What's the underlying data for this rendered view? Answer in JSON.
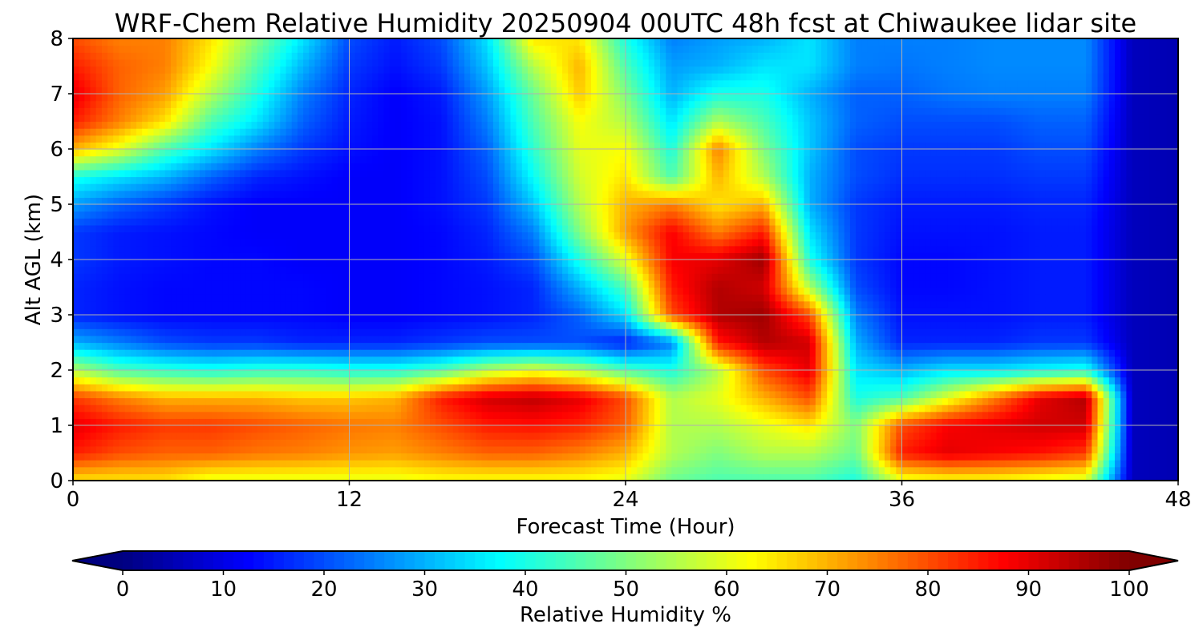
{
  "chart_data": {
    "type": "heatmap",
    "title": "WRF-Chem Relative Humidity 20250904 00UTC 48h fcst at Chiwaukee lidar site",
    "xlabel": "Forecast Time (Hour)",
    "ylabel": "Alt AGL (km)",
    "xlim": [
      0,
      48
    ],
    "ylim": [
      0,
      8
    ],
    "x_ticks": [
      0,
      12,
      24,
      36,
      48
    ],
    "x_tick_labels": [
      "0",
      "12",
      "24",
      "36",
      "48"
    ],
    "y_ticks": [
      0,
      1,
      2,
      3,
      4,
      5,
      6,
      7,
      8
    ],
    "y_tick_labels": [
      "0",
      "1",
      "2",
      "3",
      "4",
      "5",
      "6",
      "7",
      "8"
    ],
    "grid": true,
    "colormap": "jet",
    "colorbar": {
      "label": "Relative Humidity %",
      "min": 0,
      "max": 100,
      "ticks": [
        0,
        10,
        20,
        30,
        40,
        50,
        60,
        70,
        80,
        90,
        100
      ],
      "tick_labels": [
        "0",
        "10",
        "20",
        "30",
        "40",
        "50",
        "60",
        "70",
        "80",
        "90",
        "100"
      ],
      "extend": "both",
      "orientation": "horizontal"
    },
    "x": [
      0,
      2,
      4,
      6,
      8,
      10,
      12,
      14,
      16,
      18,
      20,
      22,
      24,
      26,
      28,
      30,
      32,
      34,
      36,
      38,
      40,
      42,
      44,
      46,
      48
    ],
    "y": [
      0,
      0.5,
      1,
      1.5,
      2,
      2.5,
      3,
      3.5,
      4,
      4.5,
      5,
      5.5,
      6,
      6.5,
      7,
      7.5,
      8
    ],
    "values": [
      [
        65,
        65,
        65,
        60,
        60,
        60,
        60,
        60,
        62,
        62,
        62,
        62,
        60,
        48,
        45,
        45,
        45,
        40,
        60,
        62,
        62,
        60,
        58,
        6,
        5
      ],
      [
        85,
        80,
        78,
        78,
        76,
        75,
        73,
        72,
        75,
        78,
        78,
        75,
        70,
        55,
        50,
        55,
        55,
        48,
        85,
        90,
        88,
        86,
        82,
        6,
        5
      ],
      [
        90,
        85,
        82,
        82,
        80,
        78,
        76,
        75,
        80,
        85,
        86,
        84,
        78,
        55,
        55,
        60,
        65,
        50,
        80,
        88,
        90,
        92,
        92,
        6,
        5
      ],
      [
        82,
        75,
        70,
        70,
        70,
        68,
        68,
        70,
        85,
        92,
        94,
        90,
        80,
        55,
        60,
        70,
        80,
        40,
        45,
        60,
        75,
        90,
        95,
        6,
        5
      ],
      [
        55,
        45,
        42,
        40,
        42,
        42,
        40,
        40,
        45,
        55,
        60,
        55,
        45,
        40,
        55,
        80,
        90,
        35,
        30,
        35,
        35,
        38,
        40,
        6,
        5
      ],
      [
        30,
        25,
        20,
        18,
        18,
        16,
        16,
        16,
        18,
        20,
        20,
        20,
        15,
        25,
        85,
        95,
        92,
        30,
        16,
        16,
        16,
        18,
        18,
        6,
        5
      ],
      [
        16,
        14,
        13,
        13,
        13,
        13,
        12,
        12,
        13,
        14,
        16,
        22,
        35,
        80,
        95,
        97,
        80,
        25,
        14,
        14,
        14,
        15,
        15,
        6,
        5
      ],
      [
        16,
        14,
        13,
        13,
        13,
        13,
        12,
        12,
        13,
        14,
        16,
        30,
        45,
        85,
        95,
        92,
        55,
        20,
        13,
        13,
        14,
        15,
        15,
        6,
        5
      ],
      [
        18,
        15,
        14,
        13,
        13,
        12,
        12,
        12,
        13,
        15,
        20,
        40,
        60,
        88,
        90,
        97,
        40,
        18,
        13,
        13,
        14,
        15,
        15,
        6,
        5
      ],
      [
        18,
        15,
        14,
        13,
        12,
        12,
        12,
        12,
        13,
        16,
        25,
        50,
        72,
        88,
        75,
        85,
        35,
        18,
        14,
        14,
        14,
        15,
        15,
        6,
        5
      ],
      [
        28,
        22,
        18,
        14,
        12,
        12,
        12,
        12,
        14,
        18,
        32,
        55,
        70,
        75,
        65,
        70,
        30,
        18,
        15,
        15,
        15,
        16,
        16,
        6,
        5
      ],
      [
        40,
        35,
        30,
        22,
        16,
        14,
        12,
        12,
        14,
        20,
        38,
        58,
        65,
        45,
        70,
        55,
        30,
        20,
        17,
        17,
        17,
        18,
        18,
        6,
        5
      ],
      [
        70,
        60,
        45,
        35,
        25,
        18,
        14,
        12,
        14,
        22,
        42,
        60,
        62,
        40,
        75,
        50,
        32,
        20,
        18,
        18,
        18,
        20,
        20,
        6,
        5
      ],
      [
        85,
        75,
        65,
        45,
        35,
        22,
        15,
        12,
        14,
        25,
        45,
        62,
        55,
        35,
        55,
        45,
        32,
        22,
        20,
        20,
        20,
        22,
        22,
        6,
        5
      ],
      [
        90,
        78,
        72,
        55,
        40,
        25,
        16,
        12,
        15,
        28,
        48,
        68,
        50,
        30,
        40,
        40,
        30,
        22,
        22,
        24,
        25,
        25,
        25,
        6,
        5
      ],
      [
        85,
        78,
        75,
        62,
        45,
        30,
        18,
        14,
        18,
        32,
        55,
        70,
        45,
        28,
        30,
        35,
        35,
        25,
        24,
        25,
        26,
        26,
        26,
        6,
        5
      ],
      [
        80,
        75,
        75,
        65,
        50,
        35,
        20,
        15,
        20,
        35,
        65,
        65,
        40,
        25,
        28,
        30,
        35,
        25,
        25,
        25,
        26,
        26,
        26,
        6,
        5
      ]
    ]
  }
}
